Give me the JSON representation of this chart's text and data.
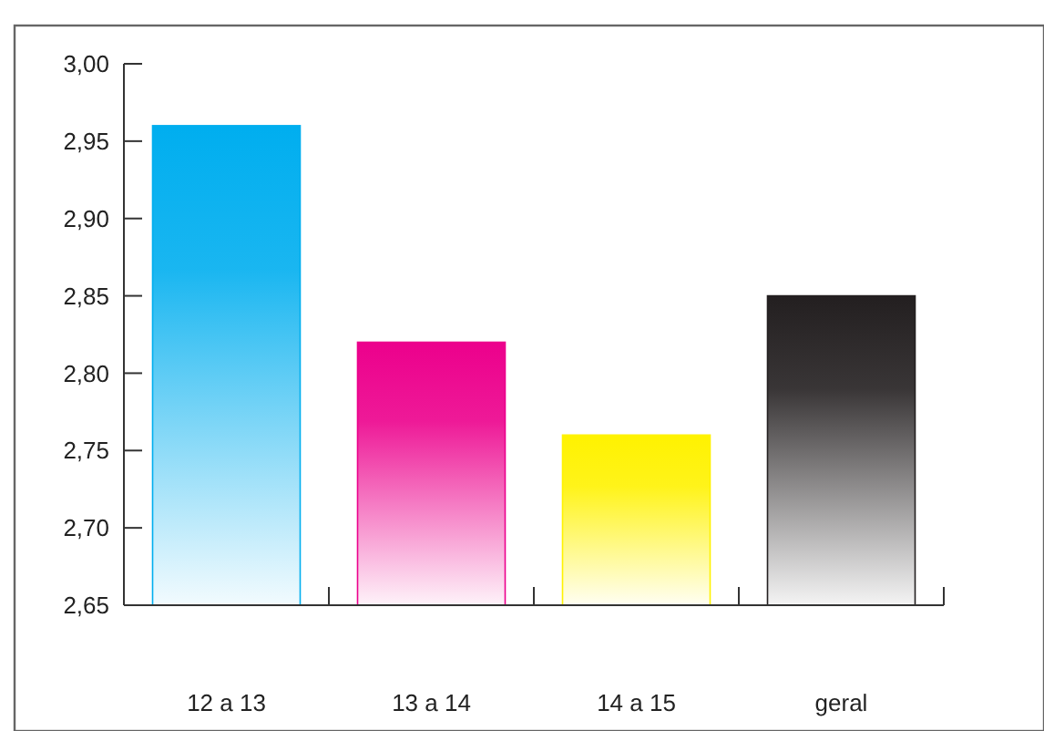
{
  "chart_data": {
    "type": "bar",
    "categories": [
      "12 a 13",
      "13 a 14",
      "14 a 15",
      "geral"
    ],
    "values": [
      2.96,
      2.82,
      2.76,
      2.85
    ],
    "colors": [
      "#00aeef",
      "#ec008c",
      "#fff200",
      "#231f20"
    ],
    "ylim": [
      2.65,
      3.0
    ],
    "yticks": [
      {
        "value": 2.65,
        "label": "2,65"
      },
      {
        "value": 2.7,
        "label": "2,70"
      },
      {
        "value": 2.75,
        "label": "2,75"
      },
      {
        "value": 2.8,
        "label": "2,80"
      },
      {
        "value": 2.85,
        "label": "2,85"
      },
      {
        "value": 2.9,
        "label": "2,90"
      },
      {
        "value": 2.95,
        "label": "2,95"
      },
      {
        "value": 3.0,
        "label": "3,00"
      }
    ],
    "grid": false
  }
}
